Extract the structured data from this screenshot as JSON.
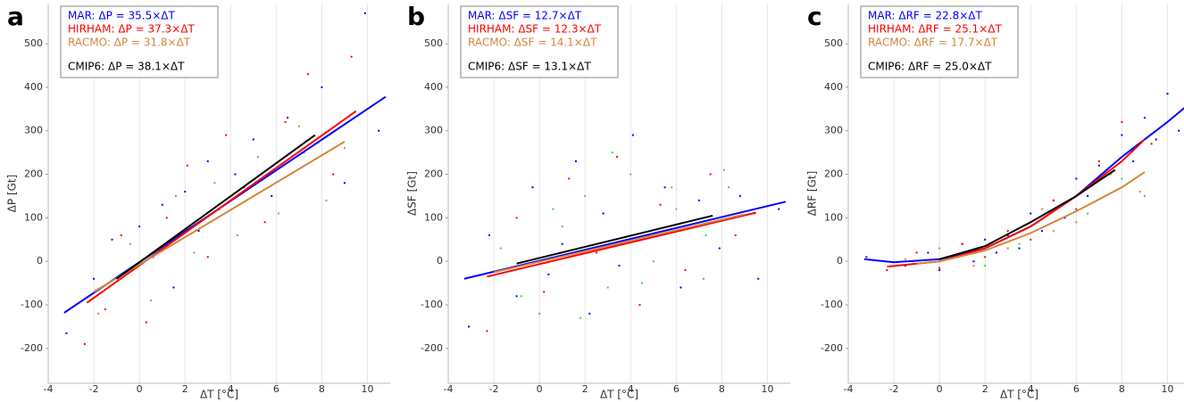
{
  "chart_data": [
    {
      "type": "scatter",
      "panel_label": "a",
      "xlabel": "ΔT [°C]",
      "ylabel": "ΔP [Gt]",
      "xlim": [
        -4,
        11
      ],
      "ylim": [
        -280,
        590
      ],
      "xticks": [
        -4,
        -2,
        0,
        2,
        4,
        6,
        8,
        10
      ],
      "yticks": [
        -200,
        -100,
        0,
        100,
        200,
        300,
        400,
        500
      ],
      "grid": "x",
      "series": [
        {
          "name": "MAR: ΔP = 35.5×ΔT",
          "color": "#0000ff",
          "x": [
            -3.2,
            -2,
            -1.2,
            -0.5,
            0,
            0.6,
            1,
            1.5,
            2,
            2.6,
            3,
            3.5,
            4.2,
            5,
            5.8,
            6.5,
            7.2,
            8,
            9,
            9.9,
            10.5
          ],
          "values": [
            -165,
            -40,
            50,
            -20,
            80,
            10,
            130,
            -60,
            160,
            70,
            230,
            120,
            200,
            280,
            150,
            330,
            250,
            400,
            180,
            570,
            300
          ],
          "fit_x": [
            -3.3,
            10.8
          ],
          "fit_values": [
            -118,
            378
          ]
        },
        {
          "name": "HIRHAM: ΔP = 37.3×ΔT",
          "color": "#ff0000",
          "x": [
            -2.4,
            -1.5,
            -0.8,
            0.3,
            1.2,
            2.1,
            3,
            3.8,
            4.6,
            5.5,
            6.4,
            7.4,
            8.5,
            9.3
          ],
          "values": [
            -190,
            -110,
            60,
            -140,
            100,
            220,
            10,
            290,
            170,
            90,
            320,
            430,
            200,
            470
          ],
          "fit_x": [
            -2.3,
            9.5
          ],
          "fit_values": [
            -95,
            345
          ]
        },
        {
          "name": "RACMO: ΔP = 31.8×ΔT",
          "color": "#d2873c",
          "x": [
            -1.8,
            -0.4,
            0.5,
            1.6,
            2.4,
            3.3,
            4.3,
            5.2,
            6.1,
            7,
            8.2,
            9
          ],
          "values": [
            -120,
            40,
            -90,
            150,
            20,
            180,
            60,
            240,
            110,
            310,
            140,
            260
          ],
          "fit_x": [
            -2,
            9
          ],
          "fit_values": [
            -70,
            275
          ]
        },
        {
          "name": "CMIP6: ΔP = 38.1×ΔT",
          "color": "#000000",
          "x": [],
          "values": [],
          "fit_x": [
            -1,
            7.7
          ],
          "fit_values": [
            -40,
            290
          ]
        }
      ]
    },
    {
      "type": "scatter",
      "panel_label": "b",
      "xlabel": "ΔT [°C]",
      "ylabel": "ΔSF [Gt]",
      "xlim": [
        -4,
        11
      ],
      "ylim": [
        -280,
        590
      ],
      "xticks": [
        -4,
        -2,
        0,
        2,
        4,
        6,
        8,
        10
      ],
      "yticks": [
        -200,
        -100,
        0,
        100,
        200,
        300,
        400,
        500
      ],
      "grid": "x",
      "series": [
        {
          "name": "MAR: ΔSF = 12.7×ΔT",
          "color": "#0000ff",
          "x": [
            -3.1,
            -2.2,
            -1,
            -0.3,
            0.4,
            1,
            1.6,
            2.2,
            2.8,
            3.5,
            4.1,
            4.8,
            5.5,
            6.2,
            7,
            7.9,
            8.8,
            9.6,
            10.5
          ],
          "values": [
            -150,
            60,
            -80,
            170,
            -30,
            40,
            230,
            -120,
            110,
            -10,
            290,
            60,
            170,
            -60,
            140,
            30,
            150,
            -40,
            120
          ],
          "fit_x": [
            -3.3,
            10.8
          ],
          "fit_values": [
            -40,
            137
          ]
        },
        {
          "name": "HIRHAM: ΔSF = 12.3×ΔT",
          "color": "#ff0000",
          "x": [
            -2.3,
            -1,
            0.2,
            1.3,
            2.5,
            3.4,
            4.4,
            5.3,
            6.4,
            7.5,
            8.6,
            9.4
          ],
          "values": [
            -160,
            100,
            -70,
            190,
            20,
            240,
            -100,
            130,
            -20,
            200,
            60,
            110
          ],
          "fit_x": [
            -2.3,
            9.5
          ],
          "fit_values": [
            -35,
            112
          ]
        },
        {
          "name": "RACMO: ΔSF = 14.1×ΔT",
          "color": "#d2873c",
          "x": [
            -1.7,
            0,
            1,
            2,
            3,
            4,
            5,
            6,
            7.2,
            8.3
          ],
          "values": [
            30,
            -120,
            80,
            150,
            -60,
            200,
            0,
            120,
            -40,
            170
          ],
          "fit_x": [
            -2,
            9
          ],
          "fit_values": [
            -25,
            108
          ]
        },
        {
          "name": "CMIP6: ΔSF = 13.1×ΔT",
          "color": "#000000",
          "x": [],
          "values": [],
          "fit_x": [
            -1,
            7.6
          ],
          "fit_values": [
            -5,
            105
          ]
        },
        {
          "color": "#33dd33",
          "x": [
            -0.8,
            0.6,
            1.8,
            3.2,
            4.5,
            5.8,
            7.3,
            8.1
          ],
          "values": [
            -80,
            120,
            -130,
            250,
            -50,
            170,
            60,
            210
          ]
        }
      ]
    },
    {
      "type": "scatter",
      "panel_label": "c",
      "xlabel": "ΔT [°C]",
      "ylabel": "ΔRF [Gt]",
      "xlim": [
        -4,
        11
      ],
      "ylim": [
        -280,
        590
      ],
      "xticks": [
        -4,
        -2,
        0,
        2,
        4,
        6,
        8,
        10
      ],
      "yticks": [
        -200,
        -100,
        0,
        100,
        200,
        300,
        400,
        500
      ],
      "grid": "x",
      "series": [
        {
          "name": "MAR: ΔRF = 22.8×ΔT",
          "color": "#0000ff",
          "x": [
            -3.2,
            -1.5,
            -0.5,
            0,
            0.5,
            1,
            1.5,
            2,
            2.5,
            3,
            3.5,
            4,
            4.5,
            5,
            5.5,
            6,
            6.5,
            7,
            7.5,
            8,
            8.5,
            9,
            9.5,
            10,
            10.5
          ],
          "values": [
            10,
            -10,
            20,
            -20,
            10,
            40,
            0,
            50,
            20,
            60,
            30,
            110,
            70,
            140,
            100,
            190,
            150,
            220,
            200,
            290,
            230,
            330,
            280,
            385,
            300
          ],
          "fit_x": [
            -3.3,
            -2,
            0,
            2,
            4,
            6,
            8,
            10,
            10.8
          ],
          "fit_values": [
            5,
            -2,
            5,
            30,
            80,
            150,
            240,
            320,
            355
          ]
        },
        {
          "name": "HIRHAM: ΔRF = 25.1×ΔT",
          "color": "#ff0000",
          "x": [
            -2.3,
            -1,
            0,
            1,
            2,
            3,
            4,
            5,
            6,
            7,
            8,
            9.3
          ],
          "values": [
            -20,
            20,
            -15,
            40,
            10,
            70,
            50,
            140,
            120,
            230,
            320,
            270
          ],
          "fit_x": [
            -2.3,
            0,
            2,
            4,
            6,
            8,
            9
          ],
          "fit_values": [
            -12,
            0,
            30,
            80,
            150,
            230,
            280
          ]
        },
        {
          "name": "RACMO: ΔRF = 17.7×ΔT",
          "color": "#d2873c",
          "x": [
            -1.5,
            0,
            1.5,
            3,
            4.5,
            6,
            7.5,
            8.8
          ],
          "values": [
            5,
            30,
            -10,
            30,
            120,
            90,
            200,
            160
          ],
          "fit_x": [
            -1,
            0,
            2,
            4,
            6,
            8,
            9
          ],
          "fit_values": [
            -5,
            0,
            25,
            65,
            115,
            170,
            205
          ]
        },
        {
          "name": "CMIP6: ΔRF = 25.0×ΔT",
          "color": "#000000",
          "x": [],
          "values": [],
          "fit_x": [
            0,
            2,
            4,
            6,
            7.7
          ],
          "fit_values": [
            5,
            35,
            90,
            150,
            210
          ]
        },
        {
          "color": "#33dd33",
          "x": [
            0.5,
            2,
            3.5,
            5,
            6.5,
            8,
            9
          ],
          "values": [
            10,
            -10,
            40,
            70,
            110,
            190,
            150
          ]
        }
      ]
    }
  ]
}
